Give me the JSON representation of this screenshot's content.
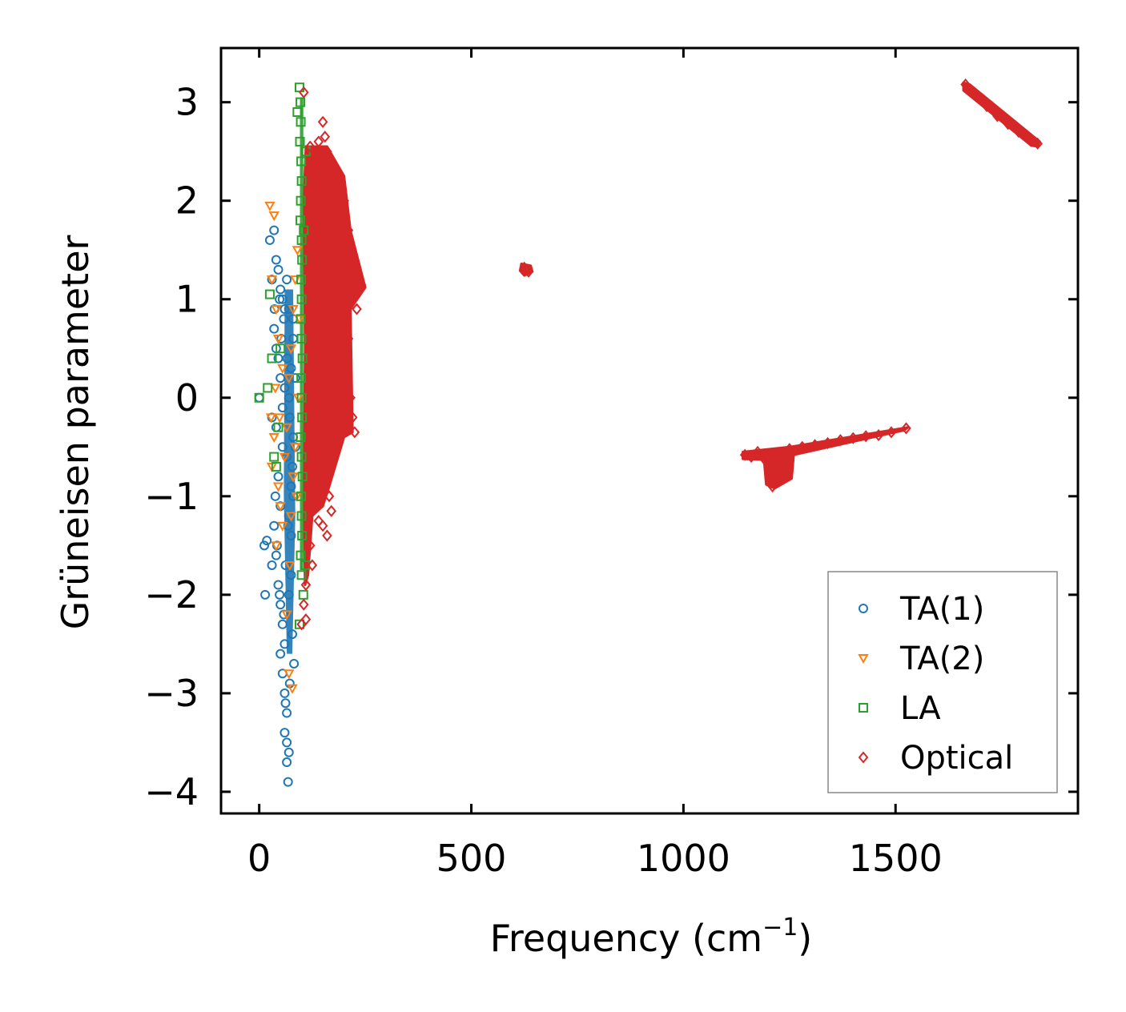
{
  "chart_data": {
    "type": "scatter",
    "title": "",
    "xlabel": "Frequency (cm",
    "xlabel_sup": "−1",
    "xlabel_close": ")",
    "ylabel": "Grüneisen parameter",
    "xlim": [
      -90,
      1930
    ],
    "ylim": [
      -4.22,
      3.55
    ],
    "xticks": [
      0,
      500,
      1000,
      1500
    ],
    "xtick_labels": [
      "0",
      "500",
      "1000",
      "1500"
    ],
    "yticks": [
      3,
      2,
      1,
      0,
      -1,
      -2,
      -3,
      -4
    ],
    "ytick_labels": [
      "3",
      "2",
      "1",
      "0",
      "−1",
      "−2",
      "−3",
      "−4"
    ],
    "legend_position": "lower-right",
    "series": [
      {
        "name": "TA(1)",
        "marker": "circle",
        "color": "#1f77b4",
        "points": [
          [
            0,
            0
          ],
          [
            12,
            -1.5
          ],
          [
            18,
            -1.45
          ],
          [
            14,
            -2.0
          ],
          [
            25,
            1.6
          ],
          [
            35,
            1.7
          ],
          [
            40,
            1.4
          ],
          [
            45,
            1.3
          ],
          [
            30,
            1.2
          ],
          [
            50,
            1.1
          ],
          [
            55,
            1.0
          ],
          [
            60,
            0.9
          ],
          [
            35,
            0.7
          ],
          [
            40,
            0.5
          ],
          [
            45,
            0.4
          ],
          [
            50,
            0.2
          ],
          [
            30,
            -0.2
          ],
          [
            40,
            -0.3
          ],
          [
            55,
            -0.5
          ],
          [
            45,
            -0.8
          ],
          [
            50,
            -1.1
          ],
          [
            35,
            -1.3
          ],
          [
            40,
            -1.6
          ],
          [
            30,
            -1.7
          ],
          [
            45,
            -1.9
          ],
          [
            50,
            -2.1
          ],
          [
            55,
            -2.3
          ],
          [
            60,
            -2.5
          ],
          [
            50,
            -2.6
          ],
          [
            55,
            -2.8
          ],
          [
            60,
            -3.0
          ],
          [
            65,
            -3.2
          ],
          [
            60,
            -3.4
          ],
          [
            65,
            -3.5
          ],
          [
            70,
            -3.6
          ],
          [
            65,
            -3.7
          ],
          [
            68,
            -3.9
          ],
          [
            62,
            -3.1
          ],
          [
            58,
            -2.2
          ],
          [
            70,
            -2.0
          ],
          [
            75,
            -1.8
          ],
          [
            70,
            -1.2
          ],
          [
            75,
            -0.9
          ],
          [
            80,
            -0.4
          ],
          [
            70,
            0.0
          ],
          [
            75,
            0.3
          ],
          [
            80,
            0.6
          ],
          [
            70,
            0.9
          ],
          [
            65,
            1.2
          ],
          [
            60,
            0.1
          ],
          [
            55,
            -0.1
          ],
          [
            65,
            -0.6
          ],
          [
            75,
            -1.4
          ],
          [
            80,
            -1.0
          ],
          [
            85,
            -0.5
          ],
          [
            85,
            0.2
          ],
          [
            80,
            0.8
          ],
          [
            78,
            -2.4
          ],
          [
            82,
            -2.7
          ],
          [
            72,
            -2.9
          ],
          [
            48,
            -2.0
          ],
          [
            42,
            -1.5
          ],
          [
            38,
            -1.0
          ],
          [
            62,
            -1.7
          ],
          [
            68,
            -1.3
          ],
          [
            52,
            0.6
          ],
          [
            58,
            0.8
          ],
          [
            48,
            1.0
          ],
          [
            36,
            0.9
          ],
          [
            66,
            0.4
          ],
          [
            72,
            -0.2
          ],
          [
            78,
            -0.7
          ]
        ]
      },
      {
        "name": "TA(2)",
        "marker": "triangle-down",
        "color": "#ff7f0e",
        "points": [
          [
            25,
            1.95
          ],
          [
            35,
            1.85
          ],
          [
            30,
            1.2
          ],
          [
            40,
            0.9
          ],
          [
            45,
            0.6
          ],
          [
            38,
            0.1
          ],
          [
            28,
            -0.2
          ],
          [
            35,
            -0.4
          ],
          [
            30,
            -0.7
          ],
          [
            45,
            -0.9
          ],
          [
            50,
            -1.1
          ],
          [
            55,
            -1.3
          ],
          [
            40,
            -1.5
          ],
          [
            60,
            -0.6
          ],
          [
            65,
            -0.3
          ],
          [
            70,
            0.2
          ],
          [
            75,
            0.5
          ],
          [
            80,
            0.9
          ],
          [
            85,
            1.2
          ],
          [
            90,
            1.5
          ],
          [
            85,
            -0.5
          ],
          [
            80,
            -0.8
          ],
          [
            75,
            -1.2
          ],
          [
            70,
            -2.8
          ],
          [
            78,
            -2.95
          ],
          [
            65,
            -2.2
          ],
          [
            72,
            -1.7
          ],
          [
            88,
            -1.0
          ],
          [
            92,
            0.0
          ],
          [
            95,
            0.8
          ],
          [
            55,
            0.3
          ],
          [
            48,
            -0.2
          ]
        ]
      },
      {
        "name": "LA",
        "marker": "square",
        "color": "#2ca02c",
        "points": [
          [
            0,
            0
          ],
          [
            20,
            0.1
          ],
          [
            25,
            1.05
          ],
          [
            30,
            0.4
          ],
          [
            35,
            -0.6
          ],
          [
            40,
            -0.7
          ],
          [
            45,
            -0.3
          ],
          [
            50,
            0.5
          ],
          [
            95,
            3.15
          ],
          [
            97,
            3.0
          ],
          [
            98,
            2.8
          ],
          [
            96,
            2.6
          ],
          [
            99,
            2.4
          ],
          [
            100,
            2.2
          ],
          [
            98,
            2.0
          ],
          [
            97,
            1.8
          ],
          [
            100,
            1.6
          ],
          [
            101,
            1.4
          ],
          [
            99,
            1.2
          ],
          [
            100,
            1.0
          ],
          [
            98,
            0.8
          ],
          [
            100,
            0.6
          ],
          [
            102,
            0.4
          ],
          [
            99,
            0.2
          ],
          [
            100,
            0.0
          ],
          [
            101,
            -0.2
          ],
          [
            98,
            -0.4
          ],
          [
            100,
            -0.6
          ],
          [
            102,
            -0.8
          ],
          [
            99,
            -1.0
          ],
          [
            100,
            -1.2
          ],
          [
            101,
            -1.4
          ],
          [
            98,
            -1.6
          ],
          [
            100,
            -1.8
          ],
          [
            95,
            -2.3
          ],
          [
            104,
            -2.0
          ],
          [
            110,
            2.5
          ],
          [
            105,
            1.7
          ],
          [
            108,
            -1.7
          ],
          [
            90,
            2.9
          ]
        ]
      },
      {
        "name": "Optical",
        "marker": "diamond",
        "color": "#d62728",
        "points": [
          [
            105,
            3.1
          ],
          [
            150,
            2.8
          ],
          [
            155,
            2.65
          ],
          [
            160,
            2.5
          ],
          [
            140,
            2.6
          ],
          [
            120,
            2.55
          ],
          [
            130,
            2.3
          ],
          [
            150,
            2.2
          ],
          [
            170,
            2.25
          ],
          [
            190,
            2.2
          ],
          [
            200,
            2.0
          ],
          [
            210,
            1.7
          ],
          [
            220,
            1.4
          ],
          [
            240,
            1.15
          ],
          [
            230,
            0.9
          ],
          [
            210,
            0.6
          ],
          [
            200,
            0.3
          ],
          [
            215,
            0.0
          ],
          [
            220,
            -0.2
          ],
          [
            225,
            -0.35
          ],
          [
            180,
            -0.5
          ],
          [
            150,
            -0.8
          ],
          [
            165,
            -1.0
          ],
          [
            170,
            -1.15
          ],
          [
            140,
            -1.25
          ],
          [
            150,
            -1.3
          ],
          [
            160,
            -1.4
          ],
          [
            120,
            -1.5
          ],
          [
            125,
            -1.7
          ],
          [
            110,
            -1.9
          ],
          [
            105,
            -2.1
          ],
          [
            100,
            -2.3
          ],
          [
            110,
            -2.25
          ],
          [
            115,
            -0.5
          ],
          [
            120,
            1.8
          ],
          [
            140,
            1.2
          ],
          [
            160,
            0.8
          ],
          [
            180,
            1.5
          ],
          [
            190,
            1.0
          ],
          [
            170,
            0.2
          ],
          [
            130,
            -0.3
          ],
          [
            200,
            1.8
          ],
          [
            625,
            1.32
          ],
          [
            635,
            1.28
          ],
          [
            630,
            1.3
          ],
          [
            1145,
            -0.58
          ],
          [
            1160,
            -0.6
          ],
          [
            1175,
            -0.55
          ],
          [
            1190,
            -0.62
          ],
          [
            1205,
            -0.8
          ],
          [
            1220,
            -0.85
          ],
          [
            1240,
            -0.75
          ],
          [
            1210,
            -0.9
          ],
          [
            1230,
            -0.7
          ],
          [
            1250,
            -0.52
          ],
          [
            1280,
            -0.5
          ],
          [
            1310,
            -0.48
          ],
          [
            1340,
            -0.46
          ],
          [
            1370,
            -0.43
          ],
          [
            1400,
            -0.41
          ],
          [
            1430,
            -0.39
          ],
          [
            1460,
            -0.38
          ],
          [
            1490,
            -0.35
          ],
          [
            1525,
            -0.31
          ],
          [
            1665,
            3.18
          ],
          [
            1690,
            3.06
          ],
          [
            1715,
            2.96
          ],
          [
            1740,
            2.86
          ],
          [
            1765,
            2.78
          ],
          [
            1790,
            2.7
          ],
          [
            1815,
            2.63
          ],
          [
            1835,
            2.58
          ]
        ]
      }
    ]
  },
  "colors": {
    "ta1": "#1f77b4",
    "ta2": "#ff7f0e",
    "la": "#2ca02c",
    "optical": "#d62728"
  }
}
